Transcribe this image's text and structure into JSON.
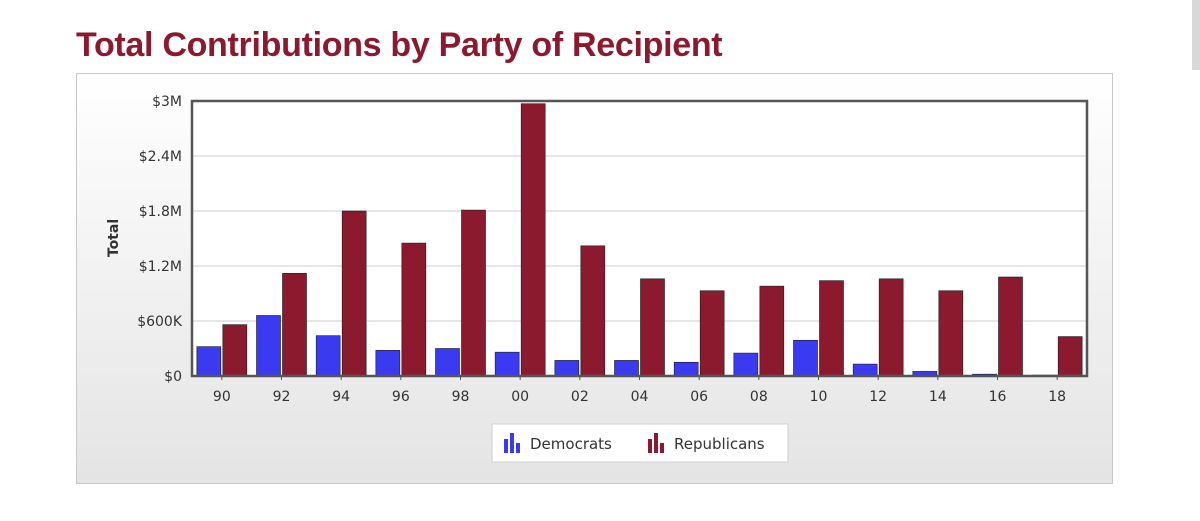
{
  "page": {
    "title": "Total Contributions by Party of Recipient"
  },
  "colors": {
    "title": "#8b1a2e",
    "democrats": "#3a3af0",
    "republicans": "#8b1a2e",
    "axis": "#555555",
    "grid": "#cccccc"
  },
  "chart_data": {
    "type": "bar",
    "title": "Total Contributions by Party of Recipient",
    "xlabel": "",
    "ylabel": "Total",
    "ylim": [
      0,
      3000000
    ],
    "yticks": [
      {
        "value": 0,
        "label": "$0"
      },
      {
        "value": 600000,
        "label": "$600K"
      },
      {
        "value": 1200000,
        "label": "$1.2M"
      },
      {
        "value": 1800000,
        "label": "$1.8M"
      },
      {
        "value": 2400000,
        "label": "$2.4M"
      },
      {
        "value": 3000000,
        "label": "$3M"
      }
    ],
    "categories": [
      "90",
      "92",
      "94",
      "96",
      "98",
      "00",
      "02",
      "04",
      "06",
      "08",
      "10",
      "12",
      "14",
      "16",
      "18"
    ],
    "series": [
      {
        "name": "Democrats",
        "color": "#3a3af0",
        "values": [
          320000,
          660000,
          440000,
          280000,
          300000,
          260000,
          170000,
          170000,
          150000,
          250000,
          390000,
          130000,
          50000,
          20000,
          10000
        ]
      },
      {
        "name": "Republicans",
        "color": "#8b1a2e",
        "values": [
          560000,
          1120000,
          1800000,
          1450000,
          1810000,
          2970000,
          1420000,
          1060000,
          930000,
          980000,
          1040000,
          1060000,
          930000,
          1080000,
          430000
        ]
      }
    ],
    "legend": {
      "position": "bottom-center",
      "entries": [
        "Democrats",
        "Republicans"
      ]
    },
    "grid": true
  }
}
